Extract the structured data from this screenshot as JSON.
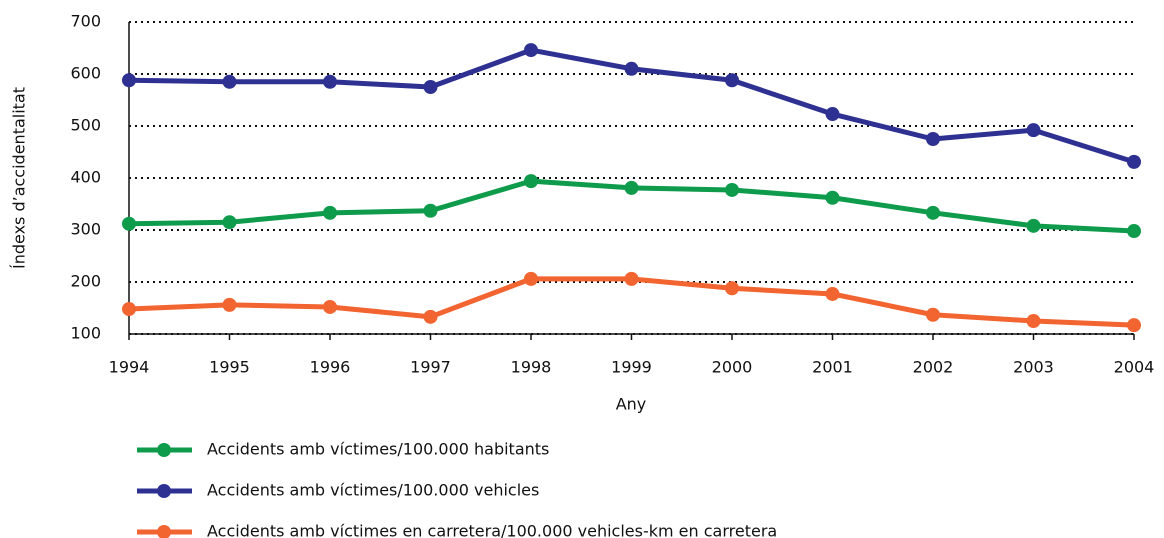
{
  "chart_data": {
    "type": "line",
    "y_label": "Índexs d’accidentalitat",
    "x_label": "Any",
    "categories": [
      "1994",
      "1995",
      "1996",
      "1997",
      "1998",
      "1999",
      "2000",
      "2001",
      "2002",
      "2003",
      "2004"
    ],
    "series": [
      {
        "name": "Accidents amb víctimes/100.000 habitants",
        "color": "#0f9b4c",
        "values": [
          312,
          315,
          333,
          337,
          394,
          381,
          377,
          362,
          333,
          308,
          298
        ]
      },
      {
        "name": "Accidents amb víctimes/100.000 vehicles",
        "color": "#2e3192",
        "values": [
          588,
          585,
          585,
          575,
          646,
          610,
          588,
          523,
          475,
          492,
          431
        ]
      },
      {
        "name": "Accidents amb víctimes en carretera/100.000 vehicles-km en carretera",
        "color": "#f26430",
        "values": [
          148,
          156,
          152,
          133,
          206,
          206,
          188,
          177,
          137,
          125,
          117
        ]
      }
    ],
    "ylim": [
      100,
      700
    ],
    "yticks": [
      100,
      200,
      300,
      400,
      500,
      600,
      700
    ],
    "grid": true
  }
}
